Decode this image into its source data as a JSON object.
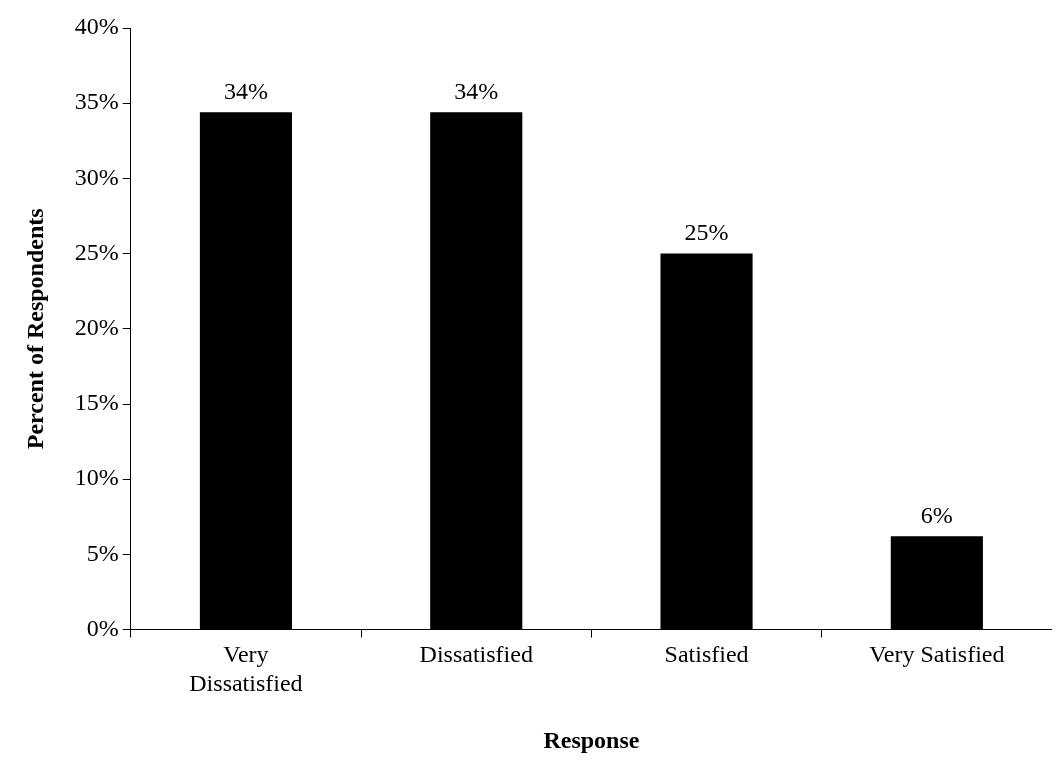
{
  "chart_data": {
    "type": "bar",
    "xlabel": "Response",
    "ylabel": "Percent of Respondents",
    "categories": [
      "Very Dissatisfied",
      "Dissatisfied",
      "Satisfied",
      "Very Satisfied"
    ],
    "values": [
      34.4,
      34.4,
      25,
      6.2
    ],
    "value_labels": [
      "34%",
      "34%",
      "25%",
      "6%"
    ],
    "color": "#000000",
    "ylim": [
      0,
      40
    ],
    "yticks": [
      {
        "value": 0,
        "label": "0%"
      },
      {
        "value": 5,
        "label": "5%"
      },
      {
        "value": 10,
        "label": "10%"
      },
      {
        "value": 15,
        "label": "15%"
      },
      {
        "value": 20,
        "label": "20%"
      },
      {
        "value": 25,
        "label": "25%"
      },
      {
        "value": 30,
        "label": "30%"
      },
      {
        "value": 35,
        "label": "35%"
      },
      {
        "value": 40,
        "label": "40%"
      }
    ],
    "grid": false,
    "legend": false
  }
}
